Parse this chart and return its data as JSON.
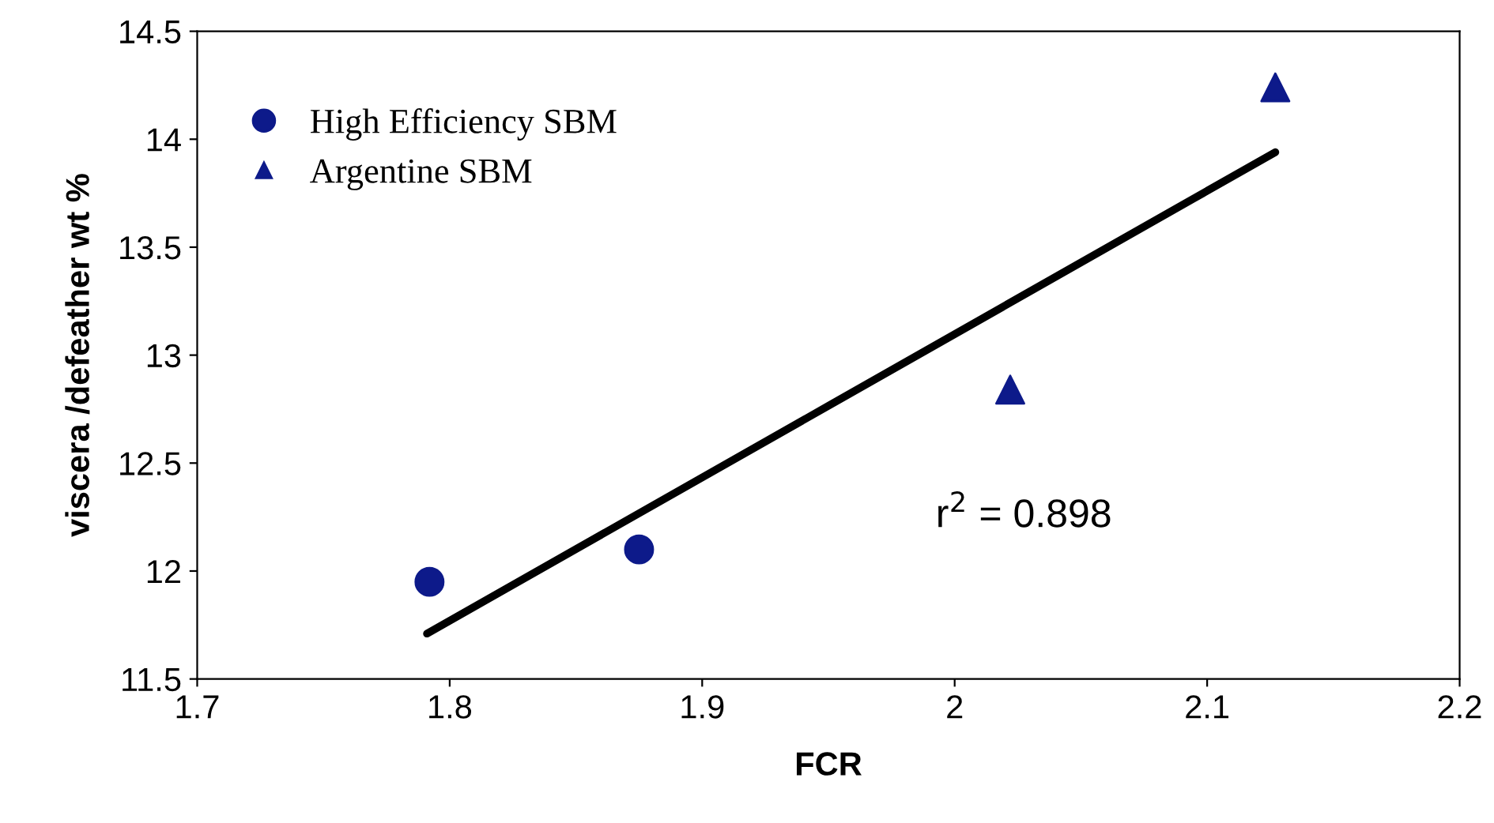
{
  "chart_data": {
    "type": "scatter",
    "xlabel": "FCR",
    "ylabel": "viscera /defeather wt %",
    "xlim": [
      1.7,
      2.2
    ],
    "xticks": [
      1.7,
      1.8,
      1.9,
      2,
      2.1,
      2.2
    ],
    "ylim": [
      11.5,
      14.5
    ],
    "yticks": [
      11.5,
      12,
      12.5,
      13,
      13.5,
      14,
      14.5
    ],
    "grid": false,
    "legend": "top left",
    "series": [
      {
        "name": "High Efficiency SBM",
        "color": "#0d1a8a",
        "marker": "circle",
        "x": [
          1.792,
          1.875
        ],
        "values": [
          11.95,
          12.1
        ]
      },
      {
        "name": "Argentine SBM",
        "color": "#0d1a8a",
        "marker": "triangle",
        "x": [
          2.022,
          2.127
        ],
        "values": [
          12.84,
          14.24
        ]
      },
      {
        "type": "line",
        "color": "#000000",
        "marker": "none",
        "x": [
          1.791,
          2.127
        ],
        "values": [
          11.71,
          13.94
        ]
      }
    ],
    "annotations": [
      "r$^{2}$ = 0.898"
    ]
  }
}
